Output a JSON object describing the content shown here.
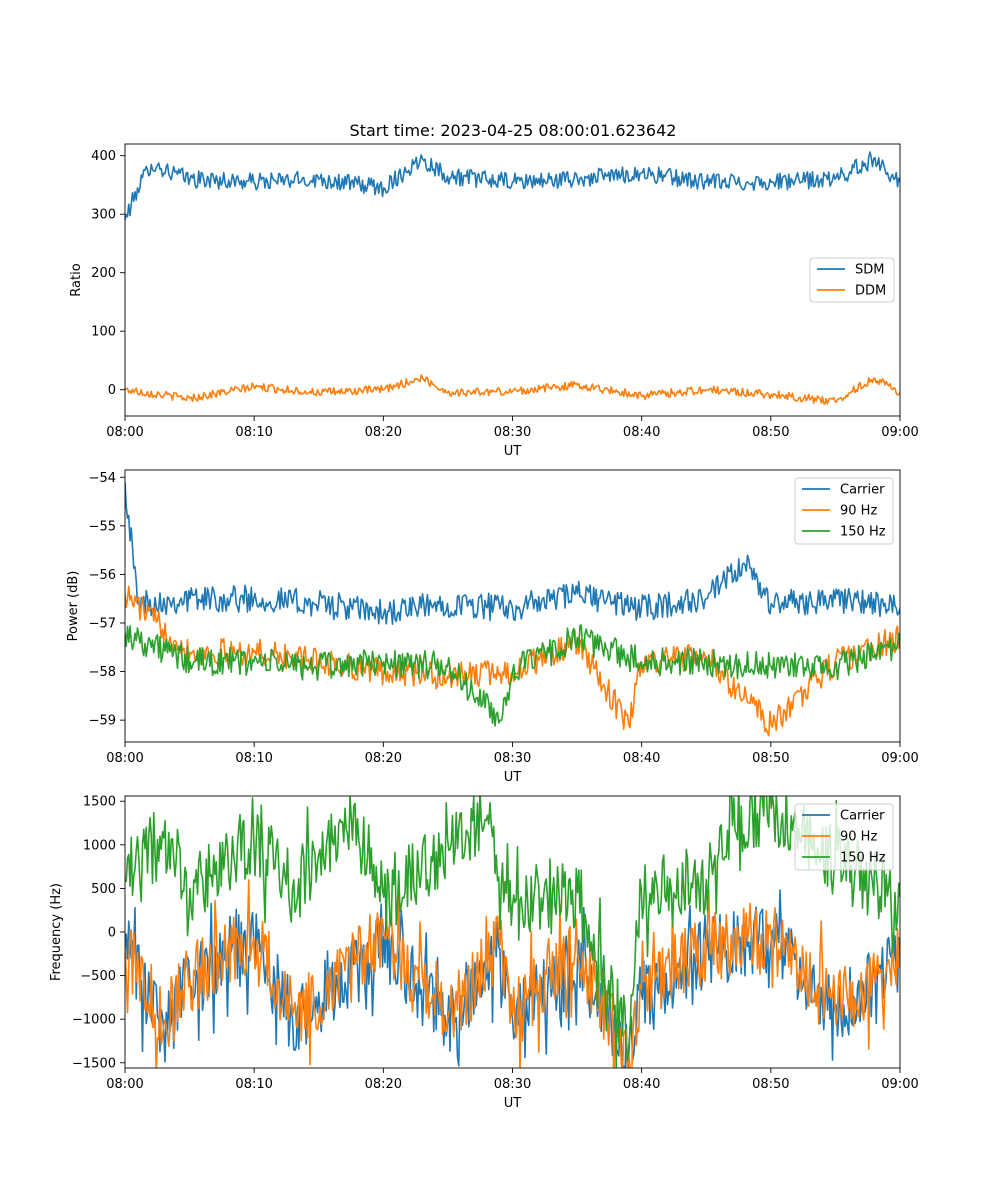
{
  "figure": {
    "title": "Start time: 2023-04-25 08:00:01.623642"
  },
  "chart_data": [
    {
      "type": "line",
      "id": "ratio",
      "title": "Start time: 2023-04-25 08:00:01.623642",
      "xlabel": "UT",
      "ylabel": "Ratio",
      "xlim": [
        "08:00",
        "09:00"
      ],
      "ylim": [
        -45,
        420
      ],
      "x_ticks": [
        "08:00",
        "08:10",
        "08:20",
        "08:30",
        "08:40",
        "08:50",
        "09:00"
      ],
      "y_ticks": [
        0,
        100,
        200,
        300,
        400
      ],
      "y_tick_labels": [
        "0",
        "100",
        "200",
        "300",
        "400"
      ],
      "legend": "center-right",
      "grid": false,
      "series": [
        {
          "name": "SDM",
          "color": "#1f77b4",
          "x": [
            "08:00",
            "08:01",
            "08:02",
            "08:05",
            "08:10",
            "08:15",
            "08:20",
            "08:23",
            "08:25",
            "08:30",
            "08:35",
            "08:40",
            "08:45",
            "08:50",
            "08:55",
            "08:58",
            "09:00"
          ],
          "values": [
            290,
            345,
            385,
            360,
            355,
            360,
            345,
            395,
            365,
            355,
            360,
            370,
            355,
            355,
            360,
            395,
            355
          ]
        },
        {
          "name": "DDM",
          "color": "#ff7f0e",
          "x": [
            "08:00",
            "08:05",
            "08:10",
            "08:15",
            "08:20",
            "08:23",
            "08:25",
            "08:30",
            "08:35",
            "08:40",
            "08:45",
            "08:50",
            "08:55",
            "08:58",
            "09:00"
          ],
          "values": [
            0,
            -15,
            5,
            -5,
            0,
            20,
            -5,
            -3,
            8,
            -10,
            0,
            -8,
            -20,
            20,
            -5
          ]
        }
      ]
    },
    {
      "type": "line",
      "id": "power",
      "xlabel": "UT",
      "ylabel": "Power (dB)",
      "xlim": [
        "08:00",
        "09:00"
      ],
      "ylim": [
        -59.45,
        -53.85
      ],
      "x_ticks": [
        "08:00",
        "08:10",
        "08:20",
        "08:30",
        "08:40",
        "08:50",
        "09:00"
      ],
      "y_ticks": [
        -59,
        -58,
        -57,
        -56,
        -55,
        -54
      ],
      "y_tick_labels": [
        "−59",
        "−58",
        "−57",
        "−56",
        "−55",
        "−54"
      ],
      "legend": "top-right",
      "grid": false,
      "series": [
        {
          "name": "Carrier",
          "color": "#1f77b4",
          "x": [
            "08:00",
            "08:01",
            "08:05",
            "08:10",
            "08:15",
            "08:20",
            "08:25",
            "08:30",
            "08:35",
            "08:40",
            "08:45",
            "08:48",
            "08:50",
            "08:55",
            "09:00"
          ],
          "values": [
            -54.1,
            -56.6,
            -56.5,
            -56.5,
            -56.6,
            -56.8,
            -56.6,
            -56.7,
            -56.4,
            -56.7,
            -56.5,
            -55.8,
            -56.6,
            -56.5,
            -56.7
          ]
        },
        {
          "name": "90 Hz",
          "color": "#ff7f0e",
          "x": [
            "08:00",
            "08:05",
            "08:10",
            "08:15",
            "08:20",
            "08:25",
            "08:30",
            "08:35",
            "08:39",
            "08:40",
            "08:45",
            "08:50",
            "08:55",
            "09:00"
          ],
          "values": [
            -56.4,
            -57.6,
            -57.6,
            -57.8,
            -58.0,
            -58.1,
            -58.0,
            -57.4,
            -59.1,
            -57.8,
            -57.7,
            -59.1,
            -57.8,
            -57.3
          ]
        },
        {
          "name": "150 Hz",
          "color": "#2ca02c",
          "x": [
            "08:00",
            "08:05",
            "08:10",
            "08:15",
            "08:20",
            "08:25",
            "08:29",
            "08:30",
            "08:35",
            "08:40",
            "08:45",
            "08:50",
            "08:55",
            "09:00"
          ],
          "values": [
            -57.2,
            -57.8,
            -57.8,
            -57.9,
            -57.8,
            -57.9,
            -59.0,
            -58.0,
            -57.3,
            -57.8,
            -57.8,
            -57.9,
            -57.9,
            -57.5
          ]
        }
      ]
    },
    {
      "type": "line",
      "id": "frequency",
      "xlabel": "UT",
      "ylabel": "Frequency (Hz)",
      "xlim": [
        "08:00",
        "09:00"
      ],
      "ylim": [
        -1560,
        1560
      ],
      "x_ticks": [
        "08:00",
        "08:10",
        "08:20",
        "08:30",
        "08:40",
        "08:50",
        "09:00"
      ],
      "y_ticks": [
        -1500,
        -1000,
        -500,
        0,
        500,
        1000,
        1500
      ],
      "y_tick_labels": [
        "−1500",
        "−1000",
        "−500",
        "0",
        "500",
        "1000",
        "1500"
      ],
      "legend": "top-right",
      "grid": false,
      "series": [
        {
          "name": "Carrier",
          "color": "#1f77b4",
          "x": [
            "08:00",
            "08:03",
            "08:05",
            "08:10",
            "08:13",
            "08:18",
            "08:20",
            "08:25",
            "08:29",
            "08:30",
            "08:35",
            "08:39",
            "08:40",
            "08:45",
            "08:50",
            "08:55",
            "09:00"
          ],
          "values": [
            -200,
            -1120,
            -600,
            -100,
            -1000,
            -400,
            -50,
            -1050,
            -200,
            -1000,
            -300,
            -1440,
            -700,
            -200,
            -100,
            -900,
            -350
          ]
        },
        {
          "name": "90 Hz",
          "color": "#ff7f0e",
          "x": [
            "08:00",
            "08:03",
            "08:05",
            "08:10",
            "08:13",
            "08:18",
            "08:20",
            "08:25",
            "08:29",
            "08:30",
            "08:35",
            "08:39",
            "08:40",
            "08:45",
            "08:50",
            "08:55",
            "09:00"
          ],
          "values": [
            -150,
            -1060,
            -550,
            -60,
            -950,
            -350,
            0,
            -1000,
            -150,
            -950,
            -250,
            -1380,
            -650,
            -150,
            -50,
            -850,
            -300
          ]
        },
        {
          "name": "150 Hz",
          "color": "#2ca02c",
          "x": [
            "08:00",
            "08:03",
            "08:05",
            "08:10",
            "08:13",
            "08:18",
            "08:20",
            "08:28",
            "08:30",
            "08:35",
            "08:39",
            "08:40",
            "08:45",
            "08:47",
            "08:50",
            "08:55",
            "09:00"
          ],
          "values": [
            600,
            1080,
            500,
            1060,
            500,
            1300,
            400,
            1280,
            300,
            450,
            -1300,
            500,
            600,
            1220,
            1420,
            800,
            400
          ]
        }
      ]
    }
  ]
}
